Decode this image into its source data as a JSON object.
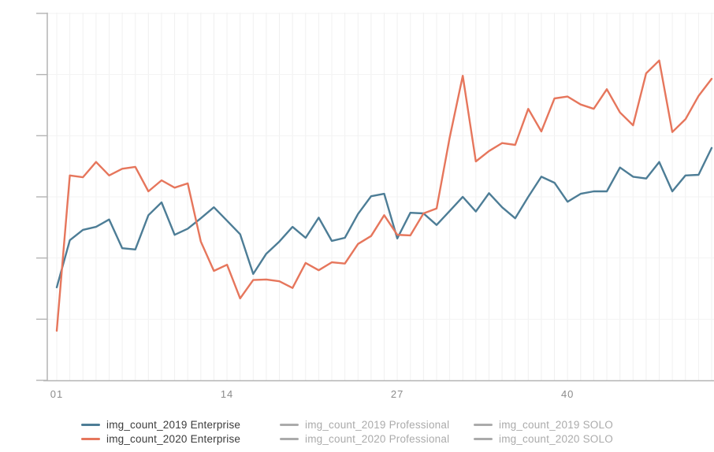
{
  "chart_data": {
    "type": "line",
    "title": "",
    "xlabel": "",
    "ylabel": "",
    "x_axis": {
      "unit": "week",
      "weeks": [
        1,
        2,
        3,
        4,
        5,
        6,
        7,
        8,
        9,
        10,
        11,
        12,
        13,
        14,
        15,
        16,
        17,
        18,
        19,
        20,
        21,
        22,
        23,
        24,
        25,
        26,
        27,
        28,
        29,
        30,
        31,
        32,
        33,
        34,
        35,
        36,
        37,
        38,
        39,
        40,
        41,
        42,
        43,
        44,
        45,
        46,
        47,
        48,
        49,
        50,
        51
      ],
      "tick_labels": [
        "01",
        "14",
        "27",
        "40"
      ],
      "tick_weeks": [
        1,
        14,
        27,
        40
      ]
    },
    "y_axis": {
      "labels_visible": false,
      "ylim": [
        0,
        6
      ],
      "tick_count": 7
    },
    "grid": {
      "vertical": "every week",
      "horizontal": "every y tick",
      "color": "#f0f0f0"
    },
    "legend_position": "bottom",
    "series": [
      {
        "name": "img_count_2019 Enterprise",
        "color": "#4d7d96",
        "visible": true,
        "values": [
          1.52,
          2.29,
          2.46,
          2.51,
          2.63,
          2.16,
          2.14,
          2.7,
          2.91,
          2.38,
          2.48,
          2.65,
          2.83,
          2.61,
          2.39,
          1.74,
          2.07,
          2.27,
          2.51,
          2.33,
          2.66,
          2.28,
          2.33,
          2.72,
          3.01,
          3.05,
          2.32,
          2.74,
          2.73,
          2.54,
          2.77,
          3.0,
          2.76,
          3.06,
          2.83,
          2.65,
          3.0,
          3.33,
          3.23,
          2.92,
          3.05,
          3.09,
          3.09,
          3.48,
          3.33,
          3.3,
          3.57,
          3.09,
          3.35,
          3.36,
          3.8
        ]
      },
      {
        "name": "img_count_2020 Enterprise",
        "color": "#e6765c",
        "visible": true,
        "values": [
          0.81,
          3.35,
          3.32,
          3.57,
          3.35,
          3.46,
          3.49,
          3.09,
          3.27,
          3.15,
          3.22,
          2.27,
          1.79,
          1.89,
          1.34,
          1.64,
          1.65,
          1.62,
          1.51,
          1.92,
          1.8,
          1.93,
          1.91,
          2.23,
          2.36,
          2.7,
          2.38,
          2.37,
          2.73,
          2.81,
          3.97,
          4.98,
          3.58,
          3.75,
          3.88,
          3.85,
          4.44,
          4.07,
          4.61,
          4.64,
          4.51,
          4.44,
          4.76,
          4.38,
          4.17,
          5.02,
          5.23,
          4.06,
          4.27,
          4.65,
          4.93
        ]
      },
      {
        "name": "img_count_2019 Professional",
        "color": "#ababab",
        "visible": false,
        "values": []
      },
      {
        "name": "img_count_2020 Professional",
        "color": "#ababab",
        "visible": false,
        "values": []
      },
      {
        "name": "img_count_2019 SOLO",
        "color": "#ababab",
        "visible": false,
        "values": []
      },
      {
        "name": "img_count_2020 SOLO",
        "color": "#ababab",
        "visible": false,
        "values": []
      }
    ]
  },
  "legend": {
    "items": [
      {
        "label": "img_count_2019 Enterprise",
        "swatch_color": "#4d7d96",
        "text_color": "#3c3c3c",
        "active": true
      },
      {
        "label": "img_count_2019 Professional",
        "swatch_color": "#ababab",
        "text_color": "#ababab",
        "active": false
      },
      {
        "label": "img_count_2019 SOLO",
        "swatch_color": "#ababab",
        "text_color": "#ababab",
        "active": false
      },
      {
        "label": "img_count_2020 Enterprise",
        "swatch_color": "#e6765c",
        "text_color": "#3c3c3c",
        "active": true
      },
      {
        "label": "img_count_2020 Professional",
        "swatch_color": "#ababab",
        "text_color": "#ababab",
        "active": false
      },
      {
        "label": "img_count_2020 SOLO",
        "swatch_color": "#ababab",
        "text_color": "#ababab",
        "active": false
      }
    ]
  },
  "colors": {
    "axis": "#b4b4b4",
    "gridline": "#f0f0f0",
    "x_tick_label": "#8c8c8c",
    "background": "#ffffff"
  }
}
